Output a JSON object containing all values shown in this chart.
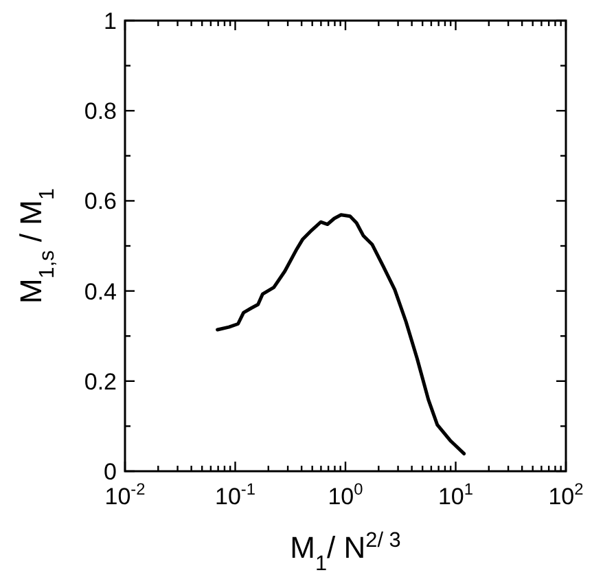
{
  "chart_data": {
    "type": "line",
    "xlabel": "M$_{1}$/ N$^{2/ 3}$",
    "ylabel": "M$_{1,s}$ / M$_{1}$",
    "log": "x",
    "xlim": [
      0.01,
      100
    ],
    "ylim": [
      0,
      1
    ],
    "xticks": [
      {
        "value": 0.01,
        "label": "10$^{-2}$"
      },
      {
        "value": 0.02,
        "label": null
      },
      {
        "value": 0.03,
        "label": null
      },
      {
        "value": 0.04,
        "label": null
      },
      {
        "value": 0.05,
        "label": null
      },
      {
        "value": 0.06,
        "label": null
      },
      {
        "value": 0.07,
        "label": null
      },
      {
        "value": 0.08,
        "label": null
      },
      {
        "value": 0.09,
        "label": null
      },
      {
        "value": 0.1,
        "label": "10$^{-1}$"
      },
      {
        "value": 0.2,
        "label": null
      },
      {
        "value": 0.3,
        "label": null
      },
      {
        "value": 0.4,
        "label": null
      },
      {
        "value": 0.5,
        "label": null
      },
      {
        "value": 0.6,
        "label": null
      },
      {
        "value": 0.7,
        "label": null
      },
      {
        "value": 0.8,
        "label": null
      },
      {
        "value": 0.9,
        "label": null
      },
      {
        "value": 1,
        "label": "10$^{0}$"
      },
      {
        "value": 2,
        "label": null
      },
      {
        "value": 3,
        "label": null
      },
      {
        "value": 4,
        "label": null
      },
      {
        "value": 5,
        "label": null
      },
      {
        "value": 6,
        "label": null
      },
      {
        "value": 7,
        "label": null
      },
      {
        "value": 8,
        "label": null
      },
      {
        "value": 9,
        "label": null
      },
      {
        "value": 10,
        "label": "10$^{1}$"
      },
      {
        "value": 20,
        "label": null
      },
      {
        "value": 30,
        "label": null
      },
      {
        "value": 40,
        "label": null
      },
      {
        "value": 50,
        "label": null
      },
      {
        "value": 60,
        "label": null
      },
      {
        "value": 70,
        "label": null
      },
      {
        "value": 80,
        "label": null
      },
      {
        "value": 90,
        "label": null
      },
      {
        "value": 100,
        "label": "10$^{2}$"
      }
    ],
    "yticks": [
      0,
      {
        "value": 0.1,
        "label": null
      },
      0.2,
      {
        "value": 0.3,
        "label": null
      },
      0.4,
      {
        "value": 0.5,
        "label": null
      },
      0.6,
      {
        "value": 0.7,
        "label": null
      },
      0.8,
      {
        "value": 0.9,
        "label": null
      },
      1
    ],
    "grid": false,
    "marker": "none",
    "line_style": "solid",
    "series": [
      {
        "color": "#000000",
        "x": [
          0.069,
          0.0877,
          0.106,
          0.119,
          0.14,
          0.161,
          0.177,
          0.224,
          0.282,
          0.356,
          0.41,
          0.495,
          0.597,
          0.687,
          0.792,
          0.912,
          1.1,
          1.26,
          1.45,
          1.75,
          2.21,
          2.8,
          3.54,
          4.47,
          5.65,
          6.81,
          9.02,
          11.9
        ],
        "values": [
          0.314,
          0.32,
          0.327,
          0.352,
          0.362,
          0.37,
          0.393,
          0.408,
          0.444,
          0.49,
          0.515,
          0.535,
          0.553,
          0.548,
          0.561,
          0.569,
          0.566,
          0.551,
          0.523,
          0.503,
          0.454,
          0.403,
          0.332,
          0.25,
          0.159,
          0.103,
          0.067,
          0.039
        ]
      }
    ]
  }
}
